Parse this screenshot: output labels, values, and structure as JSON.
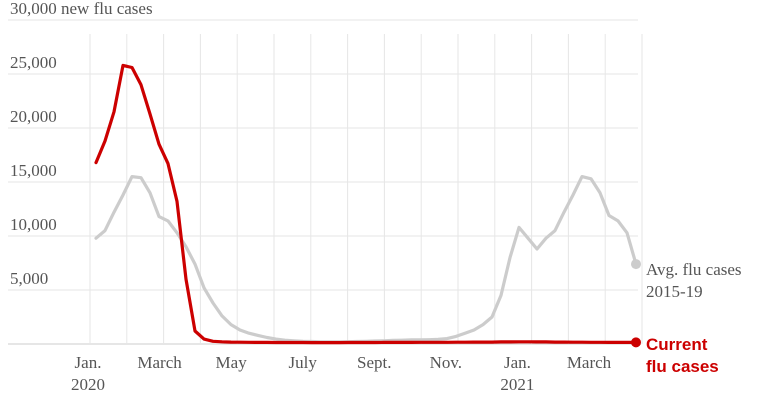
{
  "chart_data": {
    "type": "line",
    "y_tick_labels": [
      "30,000 new flu cases",
      "25,000",
      "20,000",
      "15,000",
      "10,000",
      "5,000"
    ],
    "x_tick_labels": [
      {
        "line1": "Jan.",
        "line2": "2020"
      },
      {
        "line1": "March",
        "line2": ""
      },
      {
        "line1": "May",
        "line2": ""
      },
      {
        "line1": "July",
        "line2": ""
      },
      {
        "line1": "Sept.",
        "line2": ""
      },
      {
        "line1": "Nov.",
        "line2": ""
      },
      {
        "line1": "Jan.",
        "line2": "2021"
      },
      {
        "line1": "March",
        "line2": ""
      }
    ],
    "ylim": [
      0,
      30000
    ],
    "grid": true,
    "colors": {
      "average": "#cccccc",
      "current": "#cc0000"
    },
    "series": [
      {
        "name_line1": "Avg. flu cases",
        "name_line2": "2015-19",
        "key": "average",
        "values": [
          9800,
          10500,
          12200,
          13800,
          15500,
          15400,
          14000,
          11800,
          11400,
          10300,
          9000,
          7400,
          5200,
          3800,
          2600,
          1800,
          1300,
          1000,
          800,
          600,
          450,
          350,
          300,
          250,
          230,
          200,
          200,
          200,
          210,
          230,
          250,
          280,
          300,
          330,
          350,
          380,
          380,
          400,
          430,
          500,
          700,
          1000,
          1300,
          1800,
          2500,
          4500,
          8000,
          10800,
          9800,
          8800,
          9800,
          10500,
          12200,
          13800,
          15500,
          15300,
          14000,
          11900,
          11400,
          10300,
          7400
        ]
      },
      {
        "name_line1": "Current",
        "name_line2": "flu cases",
        "key": "current",
        "values": [
          16800,
          18800,
          21500,
          25800,
          25600,
          24000,
          21300,
          18500,
          16700,
          13200,
          6000,
          1200,
          450,
          250,
          200,
          180,
          170,
          160,
          150,
          150,
          140,
          140,
          140,
          140,
          130,
          130,
          130,
          130,
          140,
          140,
          140,
          140,
          150,
          150,
          150,
          150,
          160,
          160,
          160,
          160,
          170,
          170,
          180,
          180,
          180,
          190,
          190,
          200,
          200,
          190,
          190,
          180,
          180,
          170,
          170,
          160,
          160,
          150,
          150,
          150,
          150
        ]
      }
    ]
  }
}
